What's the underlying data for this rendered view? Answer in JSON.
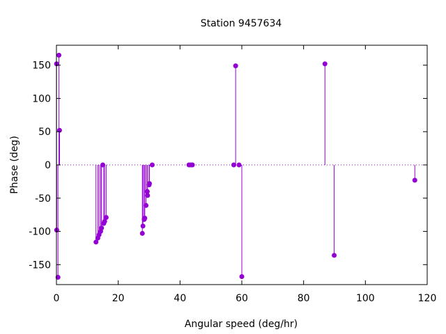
{
  "chart_data": {
    "type": "scatter",
    "style": "impulses-with-points",
    "title": "Station 9457634",
    "xlabel": "Angular speed (deg/hr)",
    "ylabel": "Phase (deg)",
    "xlim": [
      0,
      120
    ],
    "ylim": [
      -180,
      180
    ],
    "xticks": [
      0,
      20,
      40,
      60,
      80,
      100,
      120
    ],
    "yticks": [
      -150,
      -100,
      -50,
      0,
      50,
      100,
      150
    ],
    "zero_line": "dotted",
    "grid": false,
    "legend": "none",
    "color": "#9400d3",
    "points": [
      {
        "x": 0.04,
        "y": 152
      },
      {
        "x": 0.08,
        "y": -98
      },
      {
        "x": 0.5,
        "y": -169
      },
      {
        "x": 0.8,
        "y": 165
      },
      {
        "x": 1.0,
        "y": 52
      },
      {
        "x": 12.8,
        "y": -116
      },
      {
        "x": 13.4,
        "y": -110
      },
      {
        "x": 13.8,
        "y": -105
      },
      {
        "x": 14.3,
        "y": -100
      },
      {
        "x": 14.6,
        "y": -95
      },
      {
        "x": 15.0,
        "y": 0
      },
      {
        "x": 15.3,
        "y": -88
      },
      {
        "x": 15.6,
        "y": -85
      },
      {
        "x": 16.1,
        "y": -79
      },
      {
        "x": 27.8,
        "y": -103
      },
      {
        "x": 28.0,
        "y": -92
      },
      {
        "x": 28.4,
        "y": -82
      },
      {
        "x": 28.6,
        "y": -80
      },
      {
        "x": 29.0,
        "y": -61
      },
      {
        "x": 29.4,
        "y": -40
      },
      {
        "x": 29.5,
        "y": -46
      },
      {
        "x": 30.0,
        "y": -30
      },
      {
        "x": 30.1,
        "y": -28
      },
      {
        "x": 31.0,
        "y": 0
      },
      {
        "x": 42.9,
        "y": 0
      },
      {
        "x": 43.5,
        "y": 0
      },
      {
        "x": 44.0,
        "y": 0
      },
      {
        "x": 57.4,
        "y": 0
      },
      {
        "x": 58.0,
        "y": 149
      },
      {
        "x": 59.1,
        "y": 0
      },
      {
        "x": 60.0,
        "y": -168
      },
      {
        "x": 86.9,
        "y": 152
      },
      {
        "x": 89.9,
        "y": -136
      },
      {
        "x": 116.0,
        "y": -23
      }
    ]
  }
}
